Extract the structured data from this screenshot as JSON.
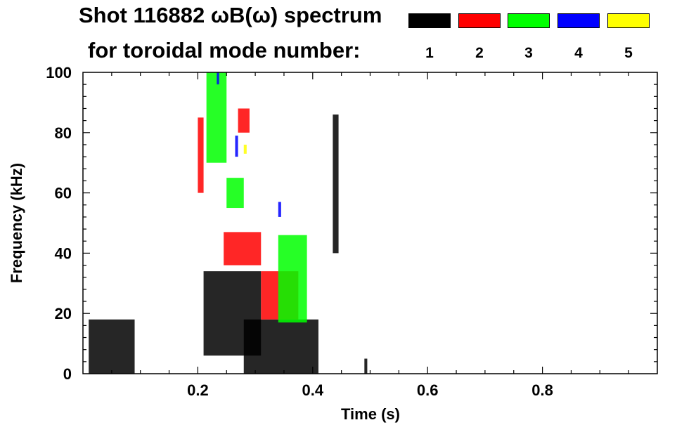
{
  "header": {
    "title_line1": "Shot 116882 ωB(ω) spectrum",
    "title_line2": "for toroidal mode number:"
  },
  "legend": [
    {
      "label": "1",
      "color": "#000000"
    },
    {
      "label": "2",
      "color": "#ff0000"
    },
    {
      "label": "3",
      "color": "#00ff00"
    },
    {
      "label": "4",
      "color": "#0000ff"
    },
    {
      "label": "5",
      "color": "#ffff00"
    }
  ],
  "chart_data": {
    "type": "heatmap",
    "xlabel": "Time (s)",
    "ylabel": "Frequency (kHz)",
    "xlim": [
      0.0,
      1.0
    ],
    "ylim": [
      0,
      100
    ],
    "x_ticks": [
      0.2,
      0.4,
      0.6,
      0.8
    ],
    "x_tick_labels": [
      "0.2",
      "0.4",
      "0.6",
      "0.8"
    ],
    "y_ticks": [
      0,
      20,
      40,
      60,
      80,
      100
    ],
    "y_tick_labels": [
      "0",
      "20",
      "40",
      "60",
      "80",
      "100"
    ],
    "grid": false,
    "legend_placement": "top-right",
    "series": [
      {
        "mode": 1,
        "color": "#000000",
        "regions": [
          {
            "t": [
              0.01,
              0.09
            ],
            "f": [
              0,
              18
            ]
          },
          {
            "t": [
              0.21,
              0.31
            ],
            "f": [
              6,
              34
            ]
          },
          {
            "t": [
              0.28,
              0.41
            ],
            "f": [
              0,
              18
            ]
          },
          {
            "t": [
              0.435,
              0.445
            ],
            "f": [
              40,
              86
            ]
          },
          {
            "t": [
              0.49,
              0.495
            ],
            "f": [
              0,
              5
            ]
          }
        ]
      },
      {
        "mode": 2,
        "color": "#ff0000",
        "regions": [
          {
            "t": [
              0.2,
              0.21
            ],
            "f": [
              60,
              85
            ]
          },
          {
            "t": [
              0.245,
              0.31
            ],
            "f": [
              36,
              47
            ]
          },
          {
            "t": [
              0.27,
              0.29
            ],
            "f": [
              80,
              88
            ]
          },
          {
            "t": [
              0.31,
              0.375
            ],
            "f": [
              18,
              34
            ]
          }
        ]
      },
      {
        "mode": 3,
        "color": "#00ff00",
        "regions": [
          {
            "t": [
              0.215,
              0.25
            ],
            "f": [
              70,
              100
            ]
          },
          {
            "t": [
              0.25,
              0.28
            ],
            "f": [
              55,
              65
            ]
          },
          {
            "t": [
              0.34,
              0.39
            ],
            "f": [
              17,
              46
            ]
          }
        ]
      },
      {
        "mode": 4,
        "color": "#0000ff",
        "regions": [
          {
            "t": [
              0.233,
              0.237
            ],
            "f": [
              96,
              100
            ]
          },
          {
            "t": [
              0.265,
              0.27
            ],
            "f": [
              72,
              79
            ]
          },
          {
            "t": [
              0.34,
              0.345
            ],
            "f": [
              52,
              57
            ]
          }
        ]
      },
      {
        "mode": 5,
        "color": "#ffff00",
        "regions": [
          {
            "t": [
              0.28,
              0.285
            ],
            "f": [
              73,
              76
            ]
          }
        ]
      }
    ]
  }
}
